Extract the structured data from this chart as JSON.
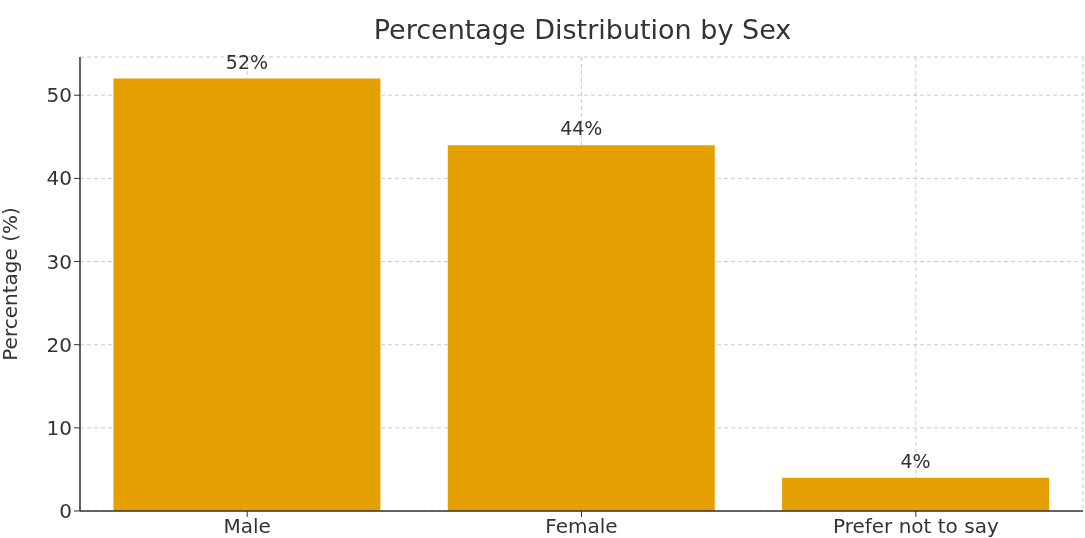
{
  "chart_data": {
    "type": "bar",
    "title": "Percentage Distribution by Sex",
    "ylabel": "Percentage (%)",
    "categories": [
      "Male",
      "Female",
      "Prefer not to say"
    ],
    "values": [
      52,
      44,
      4
    ],
    "color": "#e3a000",
    "value_labels": [
      "52%",
      "44%",
      "4%"
    ],
    "ylim": [
      0,
      54.6
    ],
    "yticks": [
      0,
      10,
      20,
      30,
      40,
      50
    ],
    "grid": true,
    "legend": false
  }
}
